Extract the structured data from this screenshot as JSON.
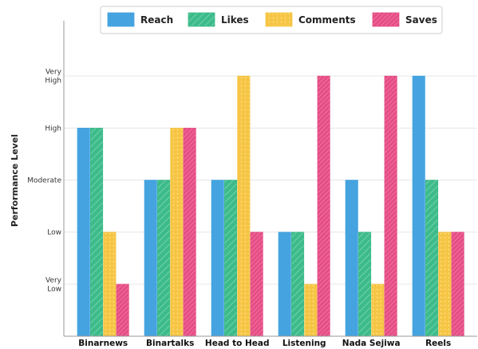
{
  "chart_data": {
    "type": "bar",
    "title": "",
    "xlabel": "",
    "ylabel": "Performance Level",
    "categories": [
      "Binarnews",
      "Binartalks",
      "Head to Head",
      "Listening",
      "Nada Sejiwa",
      "Reels"
    ],
    "y_levels": [
      {
        "value": 1,
        "label": [
          "Very",
          "Low"
        ]
      },
      {
        "value": 2,
        "label": [
          "Low"
        ]
      },
      {
        "value": 3,
        "label": [
          "Moderate"
        ]
      },
      {
        "value": 4,
        "label": [
          "High"
        ]
      },
      {
        "value": 5,
        "label": [
          "Very",
          "High"
        ]
      }
    ],
    "ylim": [
      0,
      6
    ],
    "grid": "horizontal",
    "legend_position": "top-center",
    "series": [
      {
        "name": "Reach",
        "color": "#45a3e0",
        "pattern": "solid",
        "values": [
          4,
          3,
          3,
          2,
          3,
          5
        ]
      },
      {
        "name": "Likes",
        "color": "#3dbb8a",
        "pattern": "diagonal-hatch",
        "values": [
          4,
          3,
          3,
          2,
          2,
          3
        ]
      },
      {
        "name": "Comments",
        "color": "#f6c544",
        "pattern": "dots",
        "values": [
          2,
          4,
          5,
          1,
          1,
          2
        ]
      },
      {
        "name": "Saves",
        "color": "#e64d84",
        "pattern": "fine-diagonal-hatch",
        "values": [
          1,
          4,
          2,
          5,
          5,
          2
        ]
      }
    ]
  }
}
